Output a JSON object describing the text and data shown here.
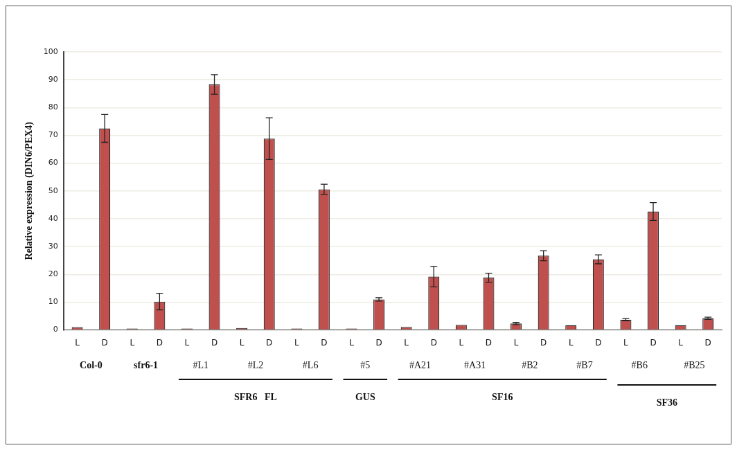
{
  "chart_data": {
    "type": "bar",
    "ylabel": "Relative expression (DIN6/PEX4)",
    "categories": [
      "L",
      "D",
      "L",
      "D",
      "L",
      "D",
      "L",
      "D",
      "L",
      "D",
      "L",
      "D",
      "L",
      "D",
      "L",
      "D",
      "L",
      "D",
      "L",
      "D",
      "L",
      "D",
      "L",
      "D"
    ],
    "values": [
      1.0,
      72.5,
      0.5,
      10.2,
      0.5,
      88.3,
      0.7,
      68.8,
      0.5,
      50.6,
      0.5,
      11.0,
      1.1,
      19.2,
      1.8,
      18.8,
      2.3,
      26.7,
      1.7,
      25.4,
      3.7,
      42.6,
      1.7,
      4.2
    ],
    "errors": [
      null,
      5.0,
      null,
      3.0,
      null,
      3.5,
      null,
      7.5,
      null,
      1.8,
      null,
      0.6,
      null,
      3.7,
      null,
      1.6,
      0.4,
      1.8,
      null,
      1.6,
      0.4,
      3.2,
      null,
      0.4
    ],
    "color": "#c0504d",
    "ylim": [
      0,
      100
    ],
    "yticks": [
      0,
      10,
      20,
      30,
      40,
      50,
      60,
      70,
      80,
      90,
      100
    ],
    "grid": "y",
    "legend": false,
    "annotations": [
      "Col-0",
      "sfr6-1",
      "#L1",
      "#L2",
      "#L6",
      "#5",
      "#A21",
      "#A31",
      "#B2",
      "#B7",
      "#B6",
      "#B25",
      "SFR6   FL",
      "GUS",
      "SF16",
      "SF36"
    ]
  }
}
